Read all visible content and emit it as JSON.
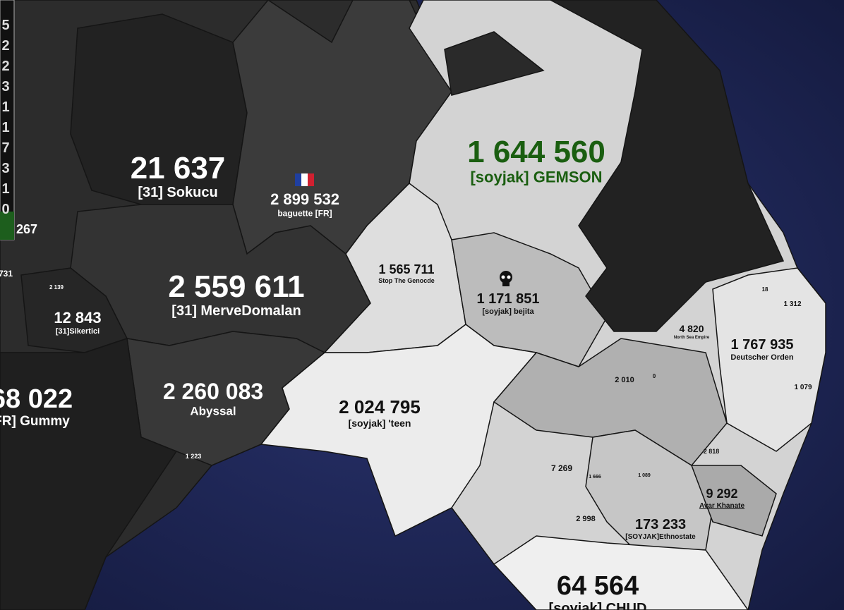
{
  "leaderboard": [
    "5",
    "2",
    "2",
    "3",
    "1",
    "1",
    "7",
    "3",
    "1",
    "0"
  ],
  "territories": [
    {
      "count": "21 637",
      "name": "[31] Sokucu"
    },
    {
      "count": "2 899 532",
      "name": "baguette [FR]"
    },
    {
      "count": "1 644 560",
      "name": "[soyjak] GEMSON"
    },
    {
      "count": "267"
    },
    {
      "count": "731"
    },
    {
      "count": "2 559 611",
      "name": "[31] MerveDomalan"
    },
    {
      "count": "2 139"
    },
    {
      "count": "12 843",
      "name": "[31]Sikertici"
    },
    {
      "count": "68 022",
      "name": "FR] Gummy"
    },
    {
      "count": "1 565 711",
      "name": "Stop The Genocde"
    },
    {
      "count": "1 171 851",
      "name": "[soyjak] bejita"
    },
    {
      "count": "4 820",
      "name": "North Sea Empire"
    },
    {
      "count": "18"
    },
    {
      "count": "1 312"
    },
    {
      "count": "1 767 935",
      "name": "Deutscher Orden"
    },
    {
      "count": "2 260 083",
      "name": "Abyssal"
    },
    {
      "count": "2 024 795",
      "name": "[soyjak] 'teen"
    },
    {
      "count": "2 010"
    },
    {
      "count": "0"
    },
    {
      "count": "1 079"
    },
    {
      "count": "1 223"
    },
    {
      "count": "2 818"
    },
    {
      "count": "7 269"
    },
    {
      "count": "1 666"
    },
    {
      "count": "1 089"
    },
    {
      "count": "9 292",
      "name": "Avar Khanate"
    },
    {
      "count": "2 998"
    },
    {
      "count": "173 233",
      "name": "[SOYJAK]Ethnostate"
    },
    {
      "count": "64 564",
      "name": "[soyjak] CHUD"
    }
  ]
}
